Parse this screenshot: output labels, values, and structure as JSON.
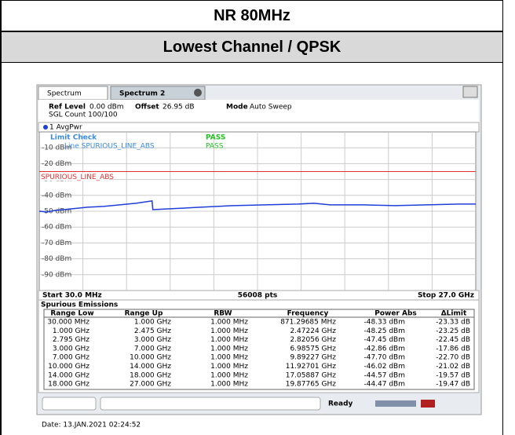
{
  "header": {
    "title": "NR 80MHz",
    "subtitle": "Lowest Channel / QPSK"
  },
  "analyzer": {
    "tabs": [
      "Spectrum",
      "Spectrum 2"
    ],
    "ref_level_label": "Ref Level",
    "ref_level": "0.00 dBm",
    "offset_label": "Offset",
    "offset": "26.95 dB",
    "mode_label": "Mode",
    "mode": "Auto Sweep",
    "sgl_count": "SGL Count 100/100",
    "trace_label": "1 AvgPwr",
    "limit_check": "Limit Check",
    "limit_check_result": "PASS",
    "limit_line_check": "Line SPURIOUS_LINE_ABS",
    "limit_line_result": "PASS",
    "limit_line_label": "SPURIOUS_LINE_ABS",
    "start": "Start 30.0 MHz",
    "points": "56008 pts",
    "stop": "Stop 27.0 GHz",
    "status": "Ready"
  },
  "chart_data": {
    "type": "line",
    "x": [
      0.03,
      0.5,
      1,
      2.5,
      3,
      4,
      5,
      6,
      7,
      7.05,
      8,
      9,
      10,
      12,
      14,
      16,
      17,
      18,
      20,
      22,
      24,
      26,
      27
    ],
    "values": [
      -50,
      -50.5,
      -49.5,
      -48,
      -47.5,
      -47,
      -46,
      -45,
      -43.5,
      -49,
      -48.5,
      -48,
      -47.5,
      -46.5,
      -46,
      -45.5,
      -45,
      -46,
      -46,
      -46.5,
      -46,
      -45.5,
      -45.5
    ],
    "color": "#1f3fd8",
    "limit_line": -25,
    "limit_color": "#e03030",
    "xlim": [
      0.03,
      27
    ],
    "ylim": [
      -100,
      0
    ],
    "yticks": [
      {
        "value": -10,
        "label": "-10 dBm"
      },
      {
        "value": -20,
        "label": "-20 dBm"
      },
      {
        "value": -30,
        "label": "-30 dBm"
      },
      {
        "value": -40,
        "label": "-40 dBm"
      },
      {
        "value": -50,
        "label": "-50 dBm"
      },
      {
        "value": -60,
        "label": "-60 dBm"
      },
      {
        "value": -70,
        "label": "-70 dBm"
      },
      {
        "value": -80,
        "label": "-80 dBm"
      },
      {
        "value": -90,
        "label": "-90 dBm"
      }
    ],
    "grid": true
  },
  "table": {
    "title": "Spurious Emissions",
    "columns": [
      "Range Low",
      "Range Up",
      "RBW",
      "Frequency",
      "Power Abs",
      "ΔLimit"
    ],
    "rows": [
      [
        "30.000 MHz",
        "1.000 GHz",
        "1.000 MHz",
        "871.29685 MHz",
        "-48.33 dBm",
        "-23.33 dB"
      ],
      [
        "1.000 GHz",
        "2.475 GHz",
        "1.000 MHz",
        "2.47224 GHz",
        "-48.25 dBm",
        "-23.25 dB"
      ],
      [
        "2.795 GHz",
        "3.000 GHz",
        "1.000 MHz",
        "2.82056 GHz",
        "-47.45 dBm",
        "-22.45 dB"
      ],
      [
        "3.000 GHz",
        "7.000 GHz",
        "1.000 MHz",
        "6.98575 GHz",
        "-42.86 dBm",
        "-17.86 dB"
      ],
      [
        "7.000 GHz",
        "10.000 GHz",
        "1.000 MHz",
        "9.89227 GHz",
        "-47.70 dBm",
        "-22.70 dB"
      ],
      [
        "10.000 GHz",
        "14.000 GHz",
        "1.000 MHz",
        "11.92701 GHz",
        "-46.02 dBm",
        "-21.02 dB"
      ],
      [
        "14.000 GHz",
        "18.000 GHz",
        "1.000 MHz",
        "17.05887 GHz",
        "-44.57 dBm",
        "-19.57 dB"
      ],
      [
        "18.000 GHz",
        "27.000 GHz",
        "1.000 MHz",
        "19.87765 GHz",
        "-44.47 dBm",
        "-19.47 dB"
      ]
    ]
  },
  "date": "Date: 13.JAN.2021 02:24:52"
}
